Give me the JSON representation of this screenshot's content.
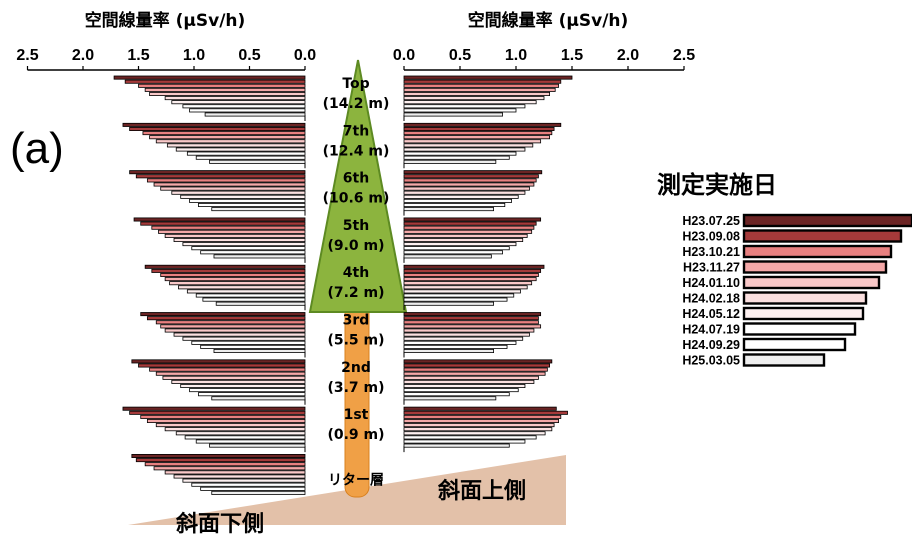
{
  "chart_data": {
    "type": "bar",
    "panel_label": "(a)",
    "axis_title": "空間線量率 (µSv/h)",
    "left_axis": {
      "title": "空間線量率 (µSv/h)",
      "ticks": [
        "2.5",
        "2.0",
        "1.5",
        "1.0",
        "0.5",
        "0.0"
      ],
      "xlim": [
        2.5,
        0.0
      ],
      "direction": "reversed"
    },
    "right_axis": {
      "title": "空間線量率 (µSv/h)",
      "ticks": [
        "0.0",
        "0.5",
        "1.0",
        "1.5",
        "2.0",
        "2.5"
      ],
      "xlim": [
        0.0,
        2.5
      ]
    },
    "legend_title": "測定実施日",
    "legend_placement": "right",
    "series": [
      {
        "name": "H23.07.25",
        "color": "#6b2424"
      },
      {
        "name": "H23.09.08",
        "color": "#a53a3a"
      },
      {
        "name": "H23.10.21",
        "color": "#e88080"
      },
      {
        "name": "H23.11.27",
        "color": "#f4a8a8"
      },
      {
        "name": "H24.01.10",
        "color": "#f9c8c8"
      },
      {
        "name": "H24.02.18",
        "color": "#fbe0e0"
      },
      {
        "name": "H24.05.12",
        "color": "#fdf0f0"
      },
      {
        "name": "H24.07.19",
        "color": "#ffffff"
      },
      {
        "name": "H24.09.29",
        "color": "#ffffff"
      },
      {
        "name": "H25.03.05",
        "color": "#eeeeee"
      }
    ],
    "heights": [
      {
        "label": "Top",
        "sub": "(14.2 m)",
        "left": [
          1.72,
          1.62,
          1.5,
          1.44,
          1.4,
          1.26,
          1.2,
          1.1,
          1.04,
          0.9
        ],
        "right": [
          1.5,
          1.4,
          1.38,
          1.35,
          1.3,
          1.25,
          1.18,
          1.08,
          1.0,
          0.88
        ]
      },
      {
        "label": "7th",
        "sub": "(12.4 m)",
        "left": [
          1.64,
          1.58,
          1.46,
          1.4,
          1.34,
          1.24,
          1.16,
          1.06,
          0.98,
          0.86
        ],
        "right": [
          1.4,
          1.34,
          1.32,
          1.3,
          1.22,
          1.15,
          1.08,
          1.0,
          0.94,
          0.82
        ]
      },
      {
        "label": "6th",
        "sub": "(10.6 m)",
        "left": [
          1.58,
          1.52,
          1.42,
          1.36,
          1.3,
          1.2,
          1.12,
          1.04,
          0.96,
          0.84
        ],
        "right": [
          1.23,
          1.2,
          1.18,
          1.16,
          1.12,
          1.08,
          1.02,
          0.96,
          0.9,
          0.8
        ]
      },
      {
        "label": "5th",
        "sub": "(9.0 m)",
        "left": [
          1.54,
          1.48,
          1.38,
          1.32,
          1.26,
          1.18,
          1.1,
          1.02,
          0.94,
          0.82
        ],
        "right": [
          1.22,
          1.18,
          1.16,
          1.14,
          1.1,
          1.06,
          1.0,
          0.94,
          0.88,
          0.78
        ]
      },
      {
        "label": "4th",
        "sub": "(7.2 m)",
        "left": [
          1.44,
          1.38,
          1.3,
          1.26,
          1.22,
          1.14,
          1.06,
          0.98,
          0.92,
          0.8
        ],
        "right": [
          1.25,
          1.22,
          1.2,
          1.18,
          1.14,
          1.1,
          1.04,
          0.98,
          0.92,
          0.8
        ]
      },
      {
        "label": "3rd",
        "sub": "(5.5 m)",
        "left": [
          1.48,
          1.42,
          1.34,
          1.3,
          1.26,
          1.18,
          1.1,
          1.02,
          0.94,
          0.82
        ],
        "right": [
          1.22,
          1.2,
          1.2,
          1.22,
          1.16,
          1.12,
          1.06,
          1.0,
          0.92,
          0.8
        ]
      },
      {
        "label": "2nd",
        "sub": "(3.7 m)",
        "left": [
          1.56,
          1.5,
          1.4,
          1.34,
          1.28,
          1.2,
          1.12,
          1.04,
          0.96,
          0.84
        ],
        "right": [
          1.32,
          1.3,
          1.28,
          1.26,
          1.2,
          1.16,
          1.08,
          1.02,
          0.94,
          0.82
        ]
      },
      {
        "label": "1st",
        "sub": "(0.9 m)",
        "left": [
          1.64,
          1.58,
          1.48,
          1.42,
          1.34,
          1.26,
          1.16,
          1.08,
          0.98,
          0.86
        ],
        "right": [
          1.36,
          1.46,
          1.4,
          1.38,
          1.34,
          1.32,
          1.26,
          1.18,
          1.08,
          0.94
        ]
      },
      {
        "label": "リター層",
        "sub": "",
        "left": [
          1.56,
          1.52,
          1.44,
          1.36,
          1.26,
          1.18,
          1.1,
          1.02,
          0.94,
          0.84
        ],
        "right": []
      }
    ],
    "slope_labels": {
      "lower": "斜面下側",
      "upper": "斜面上側"
    }
  }
}
